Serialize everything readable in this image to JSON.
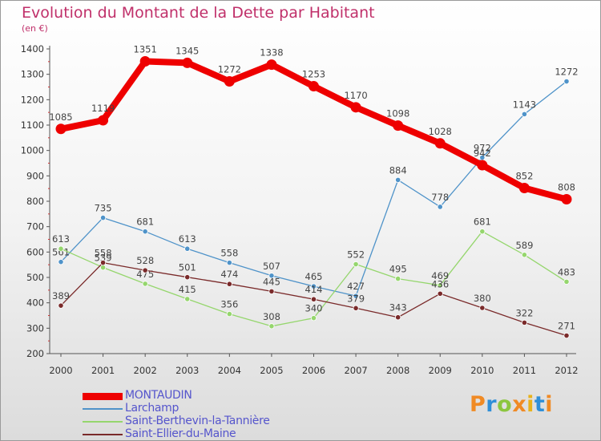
{
  "header": {
    "title": "Evolution du Montant de la Dette par Habitant",
    "unit": "(en €)"
  },
  "brand": {
    "text": "Proxiti",
    "letter_colors": [
      "#f08a24",
      "#2f8fd8",
      "#8cc63f",
      "#f08a24",
      "#e8b21b",
      "#2f8fd8",
      "#f08a24"
    ]
  },
  "chart_data": {
    "type": "line",
    "title": "Evolution du Montant de la Dette par Habitant",
    "ylabel": "(en €)",
    "xlabel": "",
    "ylim": [
      200,
      1400
    ],
    "ytick_step": 100,
    "grid": false,
    "legend_position": "bottom-left",
    "x": [
      "2000",
      "2001",
      "2002",
      "2003",
      "2004",
      "2005",
      "2006",
      "2007",
      "2008",
      "2009",
      "2010",
      "2011",
      "2012"
    ],
    "series": [
      {
        "name": "MONTAUDIN",
        "color": "#ee0000",
        "highlight": true,
        "values": [
          1085,
          1119,
          1351,
          1345,
          1272,
          1338,
          1253,
          1170,
          1098,
          1028,
          942,
          852,
          808
        ]
      },
      {
        "name": "Larchamp",
        "color": "#4f93c9",
        "highlight": false,
        "values": [
          561,
          735,
          681,
          613,
          558,
          507,
          465,
          427,
          884,
          778,
          972,
          1143,
          1272
        ]
      },
      {
        "name": "Saint-Berthevin-la-Tannière",
        "color": "#95d66d",
        "highlight": false,
        "values": [
          613,
          539,
          475,
          415,
          356,
          308,
          340,
          552,
          495,
          469,
          681,
          589,
          483
        ]
      },
      {
        "name": "Saint-Ellier-du-Maine",
        "color": "#7a2a2a",
        "highlight": false,
        "values": [
          389,
          558,
          528,
          501,
          474,
          445,
          414,
          379,
          343,
          436,
          380,
          322,
          271
        ]
      }
    ]
  }
}
